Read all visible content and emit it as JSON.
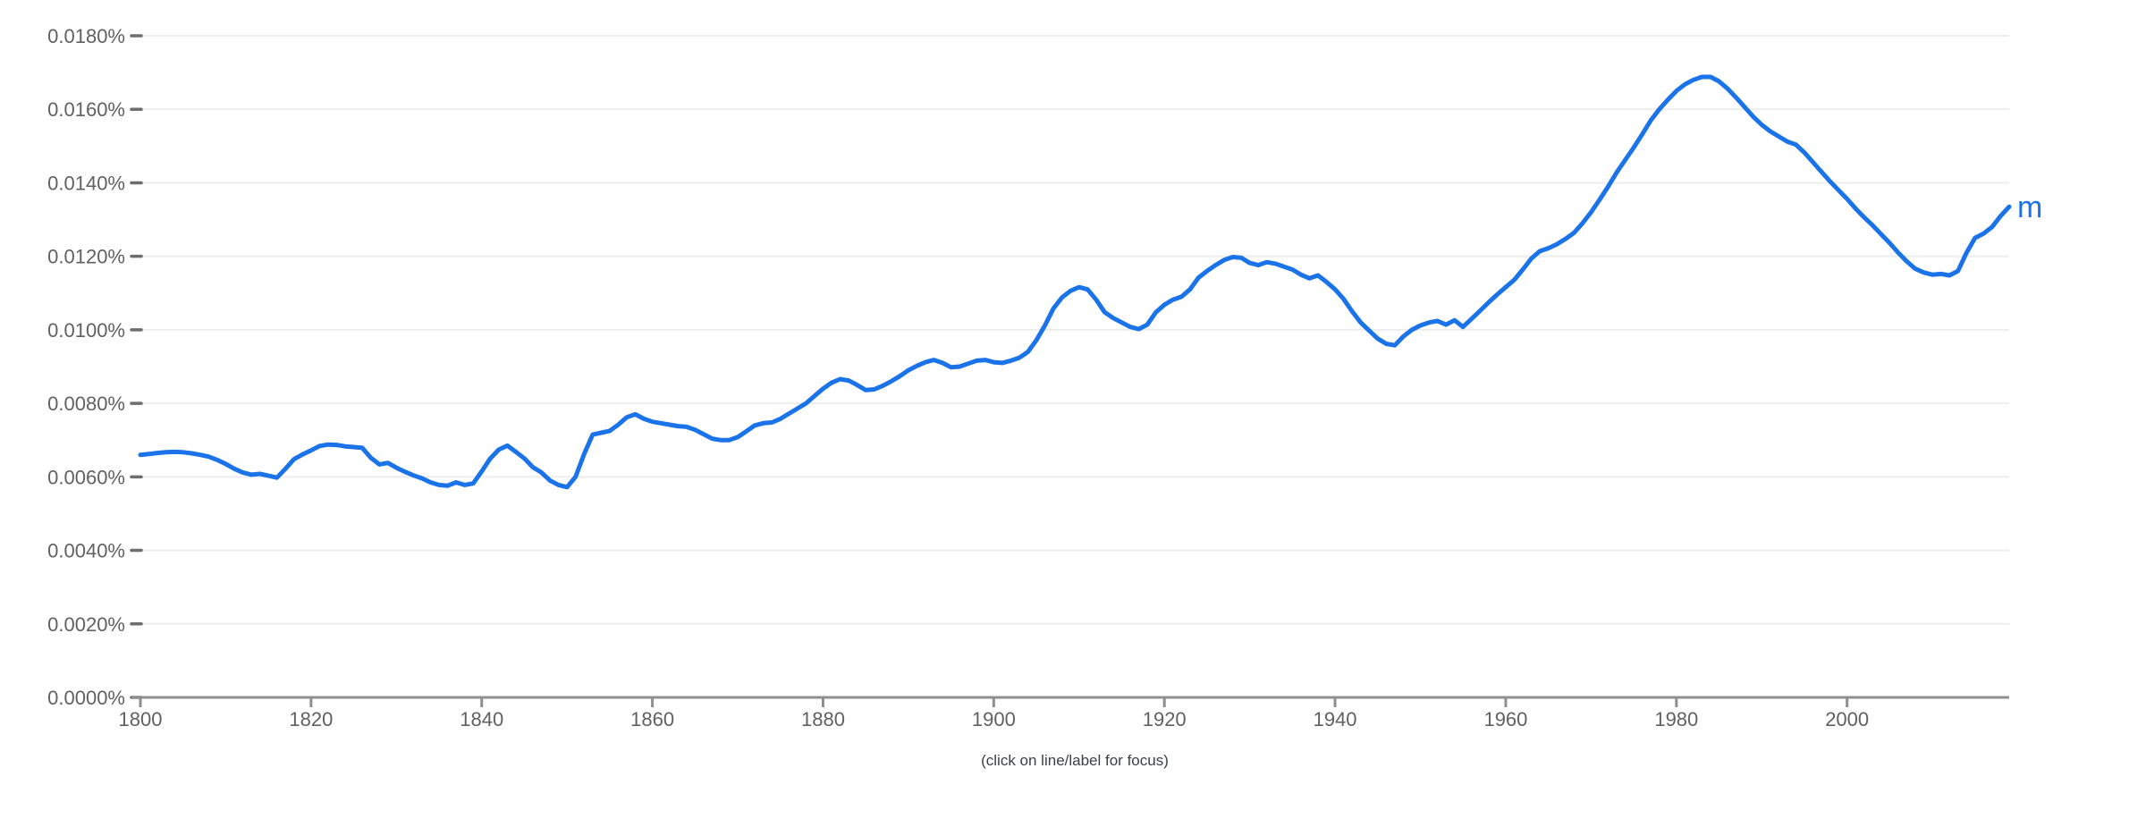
{
  "chart_data": {
    "type": "line",
    "title": "",
    "footnote": "(click on line/label for focus)",
    "grid": true,
    "legend_position": "end-of-line",
    "colors": {
      "line": "#1a73e8",
      "grid": "#ededed",
      "axis": "#8f8f8f",
      "tick_dash": "#6e6e6e",
      "tick_label": "#616161",
      "footnote": "#3c4043",
      "background": "#ffffff"
    },
    "x_axis": {
      "range": [
        1800,
        2019
      ],
      "tick_years": [
        1800,
        1820,
        1840,
        1860,
        1880,
        1900,
        1920,
        1940,
        1960,
        1980,
        2000
      ]
    },
    "y_axis": {
      "range_pct": [
        0,
        0.018
      ],
      "ticks": [
        {
          "value": 0.0,
          "label": "0.0000%"
        },
        {
          "value": 0.002,
          "label": "0.0020%"
        },
        {
          "value": 0.004,
          "label": "0.0040%"
        },
        {
          "value": 0.006,
          "label": "0.0060%"
        },
        {
          "value": 0.008,
          "label": "0.0080%"
        },
        {
          "value": 0.01,
          "label": "0.0100%"
        },
        {
          "value": 0.012,
          "label": "0.0120%"
        },
        {
          "value": 0.014,
          "label": "0.0140%"
        },
        {
          "value": 0.016,
          "label": "0.0160%"
        },
        {
          "value": 0.018,
          "label": "0.0180%"
        }
      ]
    },
    "series": [
      {
        "name": "m",
        "color": "#1a73e8",
        "x_start": 1800,
        "x_step": 1,
        "values_pct": [
          0.0066,
          0.00662,
          0.00665,
          0.00667,
          0.00668,
          0.00667,
          0.00664,
          0.0066,
          0.00655,
          0.00646,
          0.00635,
          0.00622,
          0.00612,
          0.00606,
          0.00608,
          0.00603,
          0.00598,
          0.00622,
          0.00648,
          0.00661,
          0.00672,
          0.00684,
          0.00688,
          0.00687,
          0.00683,
          0.00681,
          0.00679,
          0.00652,
          0.00634,
          0.00638,
          0.00625,
          0.00614,
          0.00604,
          0.00596,
          0.00585,
          0.00578,
          0.00576,
          0.00585,
          0.00578,
          0.00582,
          0.00615,
          0.0065,
          0.00674,
          0.00685,
          0.00668,
          0.0065,
          0.00626,
          0.00612,
          0.0059,
          0.00578,
          0.00572,
          0.006,
          0.00662,
          0.00715,
          0.0072,
          0.00725,
          0.00742,
          0.00762,
          0.0077,
          0.00758,
          0.0075,
          0.00746,
          0.00742,
          0.00738,
          0.00736,
          0.00728,
          0.00716,
          0.00704,
          0.007,
          0.007,
          0.00708,
          0.00724,
          0.0074,
          0.00746,
          0.00748,
          0.00758,
          0.00772,
          0.00786,
          0.008,
          0.0082,
          0.0084,
          0.00856,
          0.00866,
          0.00862,
          0.0085,
          0.00836,
          0.00838,
          0.00848,
          0.0086,
          0.00874,
          0.0089,
          0.00902,
          0.00912,
          0.00918,
          0.0091,
          0.00898,
          0.009,
          0.00908,
          0.00916,
          0.00918,
          0.00912,
          0.0091,
          0.00916,
          0.00924,
          0.0094,
          0.00972,
          0.01012,
          0.01058,
          0.01088,
          0.01106,
          0.01116,
          0.0111,
          0.01082,
          0.01048,
          0.01032,
          0.0102,
          0.01008,
          0.01002,
          0.01014,
          0.01048,
          0.01068,
          0.01082,
          0.0109,
          0.0111,
          0.01142,
          0.0116,
          0.01176,
          0.0119,
          0.01198,
          0.01196,
          0.01182,
          0.01176,
          0.01184,
          0.0118,
          0.01172,
          0.01164,
          0.0115,
          0.0114,
          0.01148,
          0.0113,
          0.0111,
          0.01084,
          0.0105,
          0.0102,
          0.00998,
          0.00976,
          0.00962,
          0.00958,
          0.00982,
          0.01,
          0.01012,
          0.0102,
          0.01024,
          0.01014,
          0.01026,
          0.01008,
          0.0103,
          0.01052,
          0.01075,
          0.01096,
          0.01116,
          0.01136,
          0.01164,
          0.01194,
          0.01214,
          0.01222,
          0.01233,
          0.01247,
          0.01264,
          0.0129,
          0.0132,
          0.01354,
          0.0139,
          0.01428,
          0.01462,
          0.01496,
          0.01532,
          0.0157,
          0.016,
          0.01626,
          0.0165,
          0.01668,
          0.0168,
          0.01688,
          0.01688,
          0.01676,
          0.01656,
          0.01632,
          0.01606,
          0.0158,
          0.01558,
          0.0154,
          0.01526,
          0.01512,
          0.01504,
          0.01482,
          0.01456,
          0.0143,
          0.01404,
          0.0138,
          0.01356,
          0.0133,
          0.01306,
          0.01284,
          0.0126,
          0.01236,
          0.0121,
          0.01186,
          0.01166,
          0.01156,
          0.0115,
          0.01152,
          0.01148,
          0.0116,
          0.0121,
          0.0125,
          0.01262,
          0.0128,
          0.0131,
          0.01335
        ]
      }
    ]
  }
}
